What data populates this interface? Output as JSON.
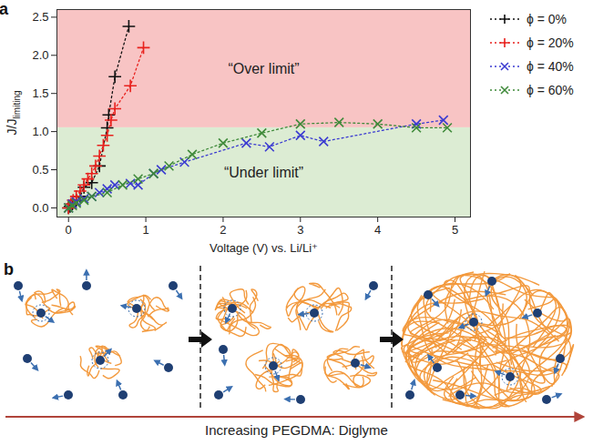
{
  "chart_data": {
    "type": "scatter",
    "panel_label": "a",
    "xlabel": "Voltage (V) vs. Li/Li⁺",
    "ylabel": {
      "text": "J/J",
      "subscript": "limiting"
    },
    "xlim": [
      -0.15,
      5.2
    ],
    "ylim": [
      -0.12,
      2.6
    ],
    "xticks": [
      0,
      1,
      2,
      3,
      4,
      5
    ],
    "yticks": [
      {
        "value": 0,
        "label": "0.0"
      },
      0.5,
      {
        "value": 1,
        "label": "1.0"
      },
      1.5,
      {
        "value": 2,
        "label": "2.0"
      },
      2.5
    ],
    "legend": "right",
    "regions": [
      {
        "label": "“Over limit”",
        "y1": 1.05,
        "y2": 2.6,
        "color": "#f8c4c4"
      },
      {
        "label": "“Under limit”",
        "y1": -0.12,
        "y2": 1.05,
        "color": "#dcecd3"
      }
    ],
    "series": [
      {
        "name": "ϕ = 0%",
        "color": "#111111",
        "marker": "plus",
        "line_style": "dotted",
        "x": [
          0,
          0.02,
          0.05,
          0.1,
          0.15,
          0.2,
          0.3,
          0.4,
          0.5,
          0.52,
          0.6,
          0.78
        ],
        "values": [
          0,
          0.02,
          0.05,
          0.1,
          0.15,
          0.27,
          0.33,
          0.55,
          1.05,
          1.22,
          1.72,
          2.38
        ]
      },
      {
        "name": "ϕ = 20%",
        "color": "#e8211d",
        "marker": "plus",
        "line_style": "dotted",
        "x": [
          0,
          0.03,
          0.06,
          0.1,
          0.15,
          0.2,
          0.25,
          0.3,
          0.35,
          0.4,
          0.45,
          0.5,
          0.55,
          0.6,
          0.8,
          0.97
        ],
        "values": [
          0,
          0.05,
          0.1,
          0.15,
          0.22,
          0.3,
          0.38,
          0.45,
          0.55,
          0.68,
          0.82,
          0.95,
          1.15,
          1.3,
          1.6,
          2.1
        ]
      },
      {
        "name": "ϕ = 40%",
        "color": "#3b3bd1",
        "marker": "times",
        "line_style": "dotted",
        "x": [
          0,
          0.05,
          0.1,
          0.2,
          0.3,
          0.4,
          0.5,
          0.6,
          0.8,
          0.9,
          1.1,
          1.2,
          1.5,
          2.3,
          2.6,
          3.0,
          3.3,
          4.5,
          4.85
        ],
        "values": [
          0,
          0.05,
          0.08,
          0.12,
          0.15,
          0.2,
          0.25,
          0.3,
          0.32,
          0.3,
          0.45,
          0.5,
          0.6,
          0.85,
          0.8,
          0.95,
          0.87,
          1.1,
          1.15
        ]
      },
      {
        "name": "ϕ = 60%",
        "color": "#3f8a3a",
        "marker": "times",
        "line_style": "dotted",
        "x": [
          0,
          0.05,
          0.1,
          0.2,
          0.3,
          0.5,
          0.7,
          0.9,
          1.1,
          1.3,
          1.6,
          2.0,
          2.5,
          3.0,
          3.5,
          4.0,
          4.5,
          4.9
        ],
        "values": [
          0,
          0.03,
          0.06,
          0.1,
          0.15,
          0.2,
          0.3,
          0.38,
          0.45,
          0.55,
          0.7,
          0.85,
          0.98,
          1.1,
          1.12,
          1.1,
          1.05,
          1.05
        ]
      }
    ]
  },
  "diagram": {
    "panel_label": "b",
    "axis_label": "Increasing PEGDMA: Diglyme"
  }
}
